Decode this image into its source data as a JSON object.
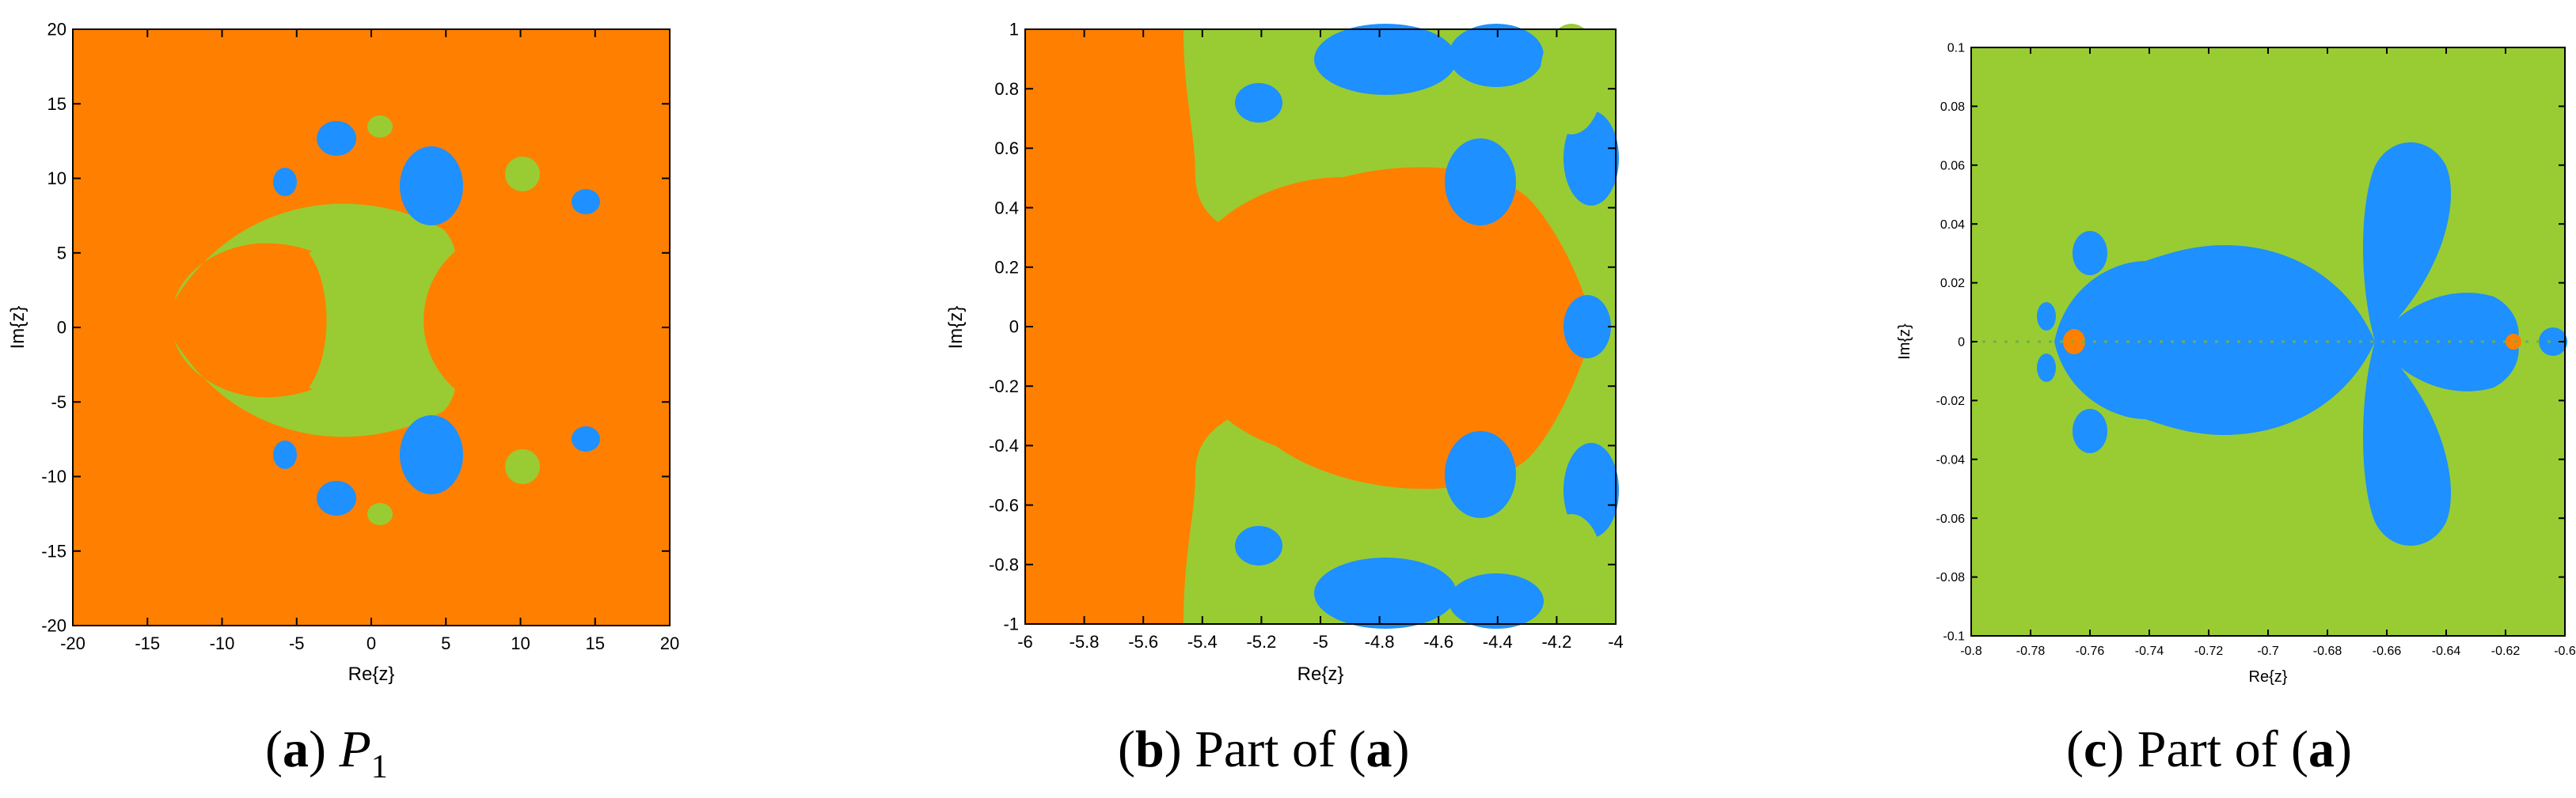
{
  "chart_data": [
    {
      "id": "a",
      "type": "heatmap",
      "xlabel": "Re{z}",
      "ylabel": "Im{z}",
      "xlim": [
        -20,
        20
      ],
      "ylim": [
        -20,
        20
      ],
      "xticks": [
        "-20",
        "-15",
        "-10",
        "-5",
        "0",
        "5",
        "10",
        "15",
        "20"
      ],
      "yticks": [
        "20",
        "15",
        "10",
        "5",
        "0",
        "-5",
        "-10",
        "-15",
        "-20"
      ],
      "colors": {
        "outer": "#ff8000",
        "green": "#99cc33",
        "blue": "#1e90ff"
      },
      "caption": {
        "letter": "a",
        "rest": "P",
        "sub": "1"
      }
    },
    {
      "id": "b",
      "type": "heatmap",
      "xlabel": "Re{z}",
      "ylabel": "Im{z}",
      "xlim": [
        -6,
        -4
      ],
      "ylim": [
        -1,
        1
      ],
      "xticks": [
        "-6",
        "-5.8",
        "-5.6",
        "-5.4",
        "-5.2",
        "-5",
        "-4.8",
        "-4.6",
        "-4.4",
        "-4.2",
        "-4"
      ],
      "yticks": [
        "1",
        "0.8",
        "0.6",
        "0.4",
        "0.2",
        "0",
        "-0.2",
        "-0.4",
        "-0.6",
        "-0.8",
        "-1"
      ],
      "colors": {
        "outer": "#ff8000",
        "green": "#99cc33",
        "blue": "#1e90ff"
      },
      "caption": {
        "letter": "b",
        "rest": "Part of (",
        "letter2": "a",
        "close": ")"
      }
    },
    {
      "id": "c",
      "type": "heatmap",
      "xlabel": "Re{z}",
      "ylabel": "Im{z}",
      "xlim": [
        -0.8,
        -0.6
      ],
      "ylim": [
        -0.1,
        0.1
      ],
      "xticks": [
        "-0.8",
        "-0.78",
        "-0.76",
        "-0.74",
        "-0.72",
        "-0.7",
        "-0.68",
        "-0.66",
        "-0.64",
        "-0.62",
        "-0.6"
      ],
      "yticks": [
        "0.1",
        "0.08",
        "0.06",
        "0.04",
        "0.02",
        "0",
        "-0.02",
        "-0.04",
        "-0.06",
        "-0.08",
        "-0.1"
      ],
      "colors": {
        "outer": "#99cc33",
        "blue": "#1e90ff",
        "orange": "#ff8000"
      },
      "caption": {
        "letter": "c",
        "rest": "Part of (",
        "letter2": "a",
        "close": ")"
      }
    }
  ]
}
